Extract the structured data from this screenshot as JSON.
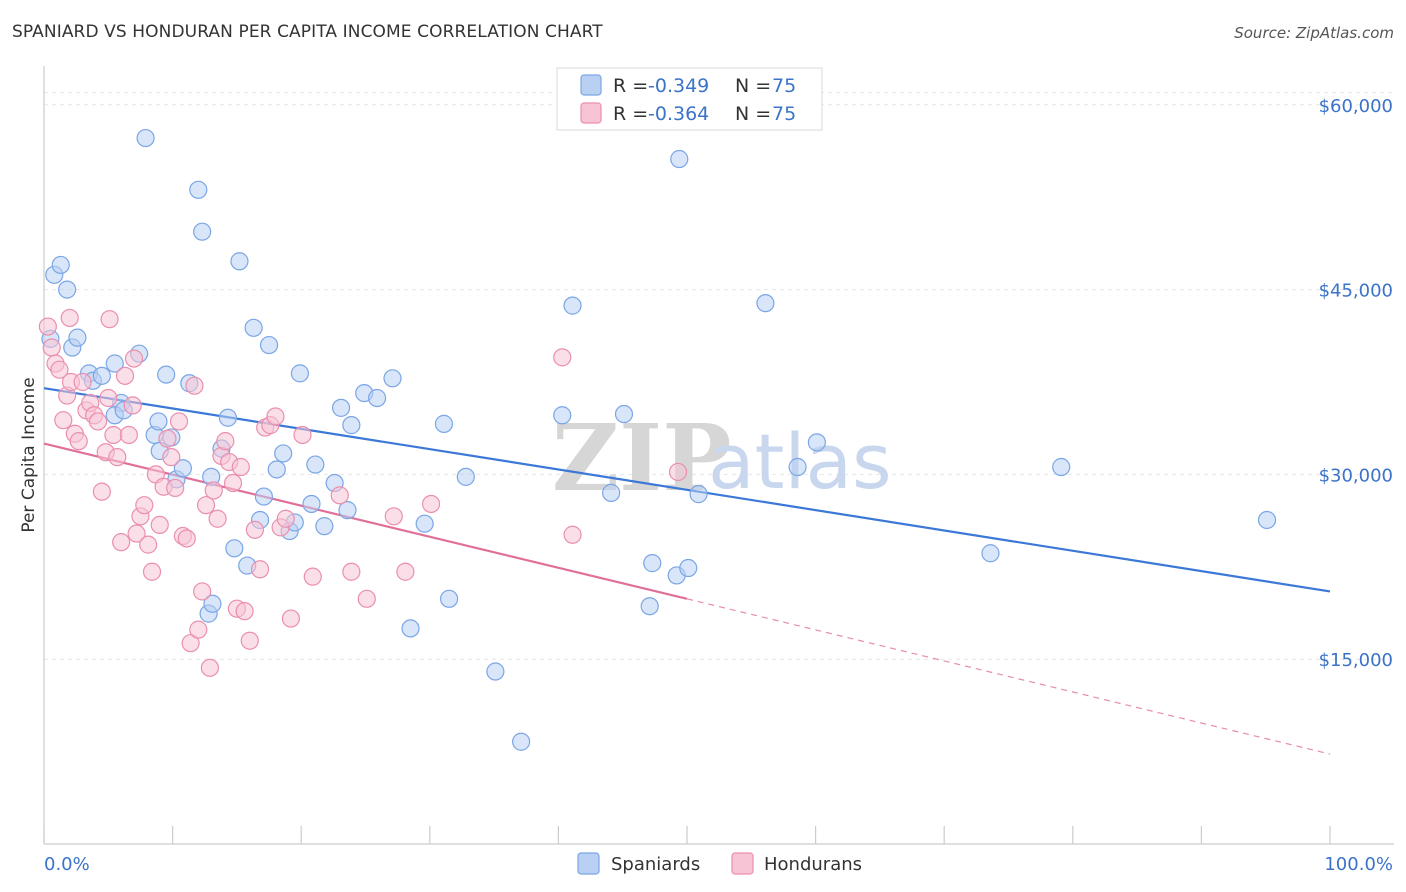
{
  "header": {
    "title": "SPANIARD VS HONDURAN PER CAPITA INCOME CORRELATION CHART",
    "source": "Source: ZipAtlas.com"
  },
  "legend": {
    "rows": [
      {
        "r_label": "R = ",
        "r_value": "-0.349",
        "n_label": "N = ",
        "n_value": "75",
        "color": "#7aa6e6",
        "fill": "#b9d0f3"
      },
      {
        "r_label": "R = ",
        "r_value": "-0.364",
        "n_label": "N = ",
        "n_value": "75",
        "color": "#ea8fae",
        "fill": "#f7c4d5"
      }
    ]
  },
  "bottom_legend": {
    "items": [
      {
        "label": "Spaniards",
        "color": "#7aa6e6",
        "fill": "#b9d0f3"
      },
      {
        "label": "Hondurans",
        "color": "#ea8fae",
        "fill": "#f7c4d5"
      }
    ]
  },
  "watermark": {
    "zip": "ZIP",
    "atlas": "atlas"
  },
  "chart_data": {
    "type": "scatter",
    "title": "SPANIARD VS HONDURAN PER CAPITA INCOME CORRELATION CHART",
    "xlabel": "",
    "ylabel": "Per Capita Income",
    "xlim": [
      0,
      100
    ],
    "ylim": [
      0,
      62500
    ],
    "x_tick_labels": [
      "0.0%",
      "100.0%"
    ],
    "y_ticks": [
      15000,
      30000,
      45000,
      60000
    ],
    "y_tick_labels": [
      "$15,000",
      "$30,000",
      "$45,000",
      "$60,000"
    ],
    "grid": true,
    "legend_position": "top-center",
    "series": [
      {
        "name": "Spaniards",
        "color": "#3b78d8",
        "marker_fill": "#b9d0f3",
        "marker_stroke": "#7aa6e6",
        "r": -0.349,
        "n": 75,
        "trend": {
          "x0": 0,
          "y0": 37000,
          "x1": 100,
          "y1": 20500,
          "dashed_from": null
        },
        "points": [
          [
            0.5,
            41000
          ],
          [
            0.8,
            46200
          ],
          [
            1.3,
            47000
          ],
          [
            1.8,
            45000
          ],
          [
            2.2,
            40300
          ],
          [
            2.6,
            41100
          ],
          [
            3.5,
            38200
          ],
          [
            3.8,
            37600
          ],
          [
            4.5,
            38000
          ],
          [
            5.5,
            39000
          ],
          [
            6.0,
            35800
          ],
          [
            7.4,
            39800
          ],
          [
            7.9,
            57300
          ],
          [
            8.6,
            33200
          ],
          [
            8.9,
            34300
          ],
          [
            9.5,
            38100
          ],
          [
            9.9,
            33000
          ],
          [
            10.3,
            29600
          ],
          [
            10.8,
            30500
          ],
          [
            11.3,
            37400
          ],
          [
            12.0,
            53100
          ],
          [
            12.3,
            49700
          ],
          [
            12.8,
            18700
          ],
          [
            13.1,
            19500
          ],
          [
            13.8,
            32100
          ],
          [
            14.3,
            34600
          ],
          [
            14.8,
            24000
          ],
          [
            15.2,
            47300
          ],
          [
            15.8,
            22600
          ],
          [
            16.3,
            41900
          ],
          [
            16.8,
            26300
          ],
          [
            17.1,
            28200
          ],
          [
            17.5,
            40500
          ],
          [
            18.1,
            30400
          ],
          [
            18.6,
            31700
          ],
          [
            19.1,
            25400
          ],
          [
            19.5,
            26100
          ],
          [
            19.9,
            38200
          ],
          [
            20.8,
            27600
          ],
          [
            21.1,
            30800
          ],
          [
            21.8,
            25800
          ],
          [
            22.6,
            29300
          ],
          [
            23.1,
            35400
          ],
          [
            23.6,
            27100
          ],
          [
            23.9,
            34000
          ],
          [
            24.9,
            36600
          ],
          [
            25.9,
            36200
          ],
          [
            27.1,
            37800
          ],
          [
            28.5,
            17500
          ],
          [
            29.6,
            26000
          ],
          [
            31.1,
            34100
          ],
          [
            31.5,
            19900
          ],
          [
            32.8,
            29800
          ],
          [
            35.1,
            14000
          ],
          [
            37.1,
            8300
          ],
          [
            40.3,
            34800
          ],
          [
            41.1,
            43700
          ],
          [
            44.1,
            28500
          ],
          [
            45.1,
            34900
          ],
          [
            47.1,
            19300
          ],
          [
            47.3,
            22800
          ],
          [
            49.2,
            21800
          ],
          [
            49.4,
            55600
          ],
          [
            50.1,
            22400
          ],
          [
            50.9,
            28400
          ],
          [
            56.1,
            43900
          ],
          [
            58.6,
            30600
          ],
          [
            60.1,
            32600
          ],
          [
            73.6,
            23600
          ],
          [
            79.1,
            30600
          ],
          [
            95.1,
            26300
          ],
          [
            5.5,
            34800
          ],
          [
            9.0,
            31900
          ],
          [
            13.0,
            29800
          ],
          [
            6.2,
            35200
          ]
        ]
      },
      {
        "name": "Hondurans",
        "color": "#e0709a",
        "marker_fill": "#f7c4d5",
        "marker_stroke": "#ea8fae",
        "r": -0.364,
        "n": 75,
        "trend": {
          "x0": 0,
          "y0": 32500,
          "x1": 100,
          "y1": 7300,
          "dashed_from": 50
        },
        "points": [
          [
            0.3,
            42000
          ],
          [
            0.6,
            40300
          ],
          [
            0.9,
            39000
          ],
          [
            1.2,
            38500
          ],
          [
            1.5,
            34400
          ],
          [
            1.8,
            36400
          ],
          [
            2.1,
            37500
          ],
          [
            2.4,
            33300
          ],
          [
            2.7,
            32700
          ],
          [
            3.0,
            37500
          ],
          [
            3.3,
            35200
          ],
          [
            3.6,
            35800
          ],
          [
            3.9,
            34800
          ],
          [
            4.2,
            34300
          ],
          [
            4.5,
            28600
          ],
          [
            4.8,
            31800
          ],
          [
            5.1,
            42600
          ],
          [
            5.4,
            33200
          ],
          [
            5.7,
            31400
          ],
          [
            6.0,
            24500
          ],
          [
            6.3,
            38000
          ],
          [
            6.6,
            33200
          ],
          [
            6.9,
            35600
          ],
          [
            7.2,
            25200
          ],
          [
            7.5,
            26600
          ],
          [
            7.8,
            27500
          ],
          [
            8.1,
            24300
          ],
          [
            8.4,
            22100
          ],
          [
            8.7,
            30000
          ],
          [
            9.0,
            25900
          ],
          [
            9.3,
            29000
          ],
          [
            9.6,
            32900
          ],
          [
            9.9,
            31400
          ],
          [
            10.2,
            28900
          ],
          [
            10.5,
            34300
          ],
          [
            10.8,
            25000
          ],
          [
            11.1,
            24800
          ],
          [
            11.4,
            16300
          ],
          [
            11.7,
            37200
          ],
          [
            12.0,
            17400
          ],
          [
            12.3,
            20500
          ],
          [
            12.6,
            27500
          ],
          [
            12.9,
            14300
          ],
          [
            13.2,
            28700
          ],
          [
            13.5,
            26400
          ],
          [
            13.8,
            31500
          ],
          [
            14.1,
            32700
          ],
          [
            14.4,
            31000
          ],
          [
            14.7,
            29300
          ],
          [
            15.0,
            19100
          ],
          [
            15.3,
            30600
          ],
          [
            15.6,
            18900
          ],
          [
            16.0,
            16500
          ],
          [
            16.4,
            25500
          ],
          [
            16.8,
            22300
          ],
          [
            17.2,
            33800
          ],
          [
            17.6,
            34000
          ],
          [
            18.0,
            34700
          ],
          [
            18.4,
            25700
          ],
          [
            18.8,
            26400
          ],
          [
            19.2,
            18300
          ],
          [
            20.1,
            33200
          ],
          [
            20.9,
            21700
          ],
          [
            23.0,
            28300
          ],
          [
            23.9,
            22100
          ],
          [
            25.1,
            19900
          ],
          [
            27.2,
            26600
          ],
          [
            28.1,
            22100
          ],
          [
            30.1,
            27600
          ],
          [
            40.3,
            39500
          ],
          [
            41.1,
            25100
          ],
          [
            49.3,
            30200
          ],
          [
            2.0,
            42700
          ],
          [
            5.0,
            36200
          ],
          [
            7.0,
            39400
          ]
        ]
      }
    ]
  }
}
